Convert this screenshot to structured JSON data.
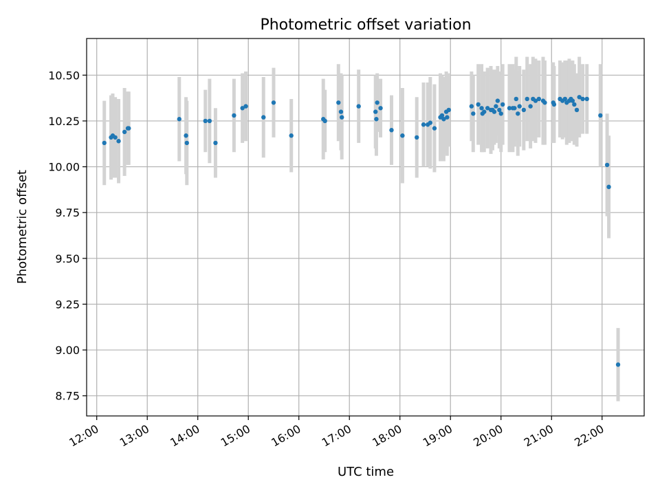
{
  "chart_data": {
    "type": "scatter",
    "title": "Photometric offset variation",
    "xlabel": "UTC time",
    "ylabel": "Photometric offset",
    "xlim": [
      "11:48",
      "22:50"
    ],
    "ylim": [
      8.64,
      10.7
    ],
    "grid": true,
    "x_ticks": [
      "12:00",
      "13:00",
      "14:00",
      "15:00",
      "16:00",
      "17:00",
      "18:00",
      "19:00",
      "20:00",
      "21:00",
      "22:00"
    ],
    "y_ticks": [
      "8.75",
      "9.00",
      "9.25",
      "9.50",
      "9.75",
      "10.00",
      "10.25",
      "10.50"
    ],
    "colors": {
      "point": "#1f77b4",
      "error_bar": "#d3d3d3",
      "grid": "#b0b0b0"
    },
    "series": [
      {
        "x": [
          "12:09",
          "12:17",
          "12:19",
          "12:22",
          "12:26",
          "12:33",
          "12:37",
          "12:38",
          "13:38",
          "13:46",
          "13:47",
          "14:09",
          "14:14",
          "14:21",
          "14:43",
          "14:53",
          "14:57",
          "15:18",
          "15:30",
          "15:51",
          "16:29",
          "16:31",
          "16:47",
          "16:50",
          "16:51",
          "17:11",
          "17:31",
          "17:32",
          "17:33",
          "17:37",
          "17:50",
          "18:03",
          "18:20",
          "18:28",
          "18:33",
          "18:36",
          "18:41",
          "18:48",
          "18:50",
          "18:52",
          "18:55",
          "18:56",
          "18:58",
          "19:25",
          "19:27",
          "19:33",
          "19:37",
          "19:38",
          "19:40",
          "19:44",
          "19:48",
          "19:50",
          "19:52",
          "19:54",
          "19:56",
          "19:58",
          "20:00",
          "20:02",
          "20:10",
          "20:14",
          "20:16",
          "20:18",
          "20:20",
          "20:22",
          "20:27",
          "20:31",
          "20:35",
          "20:38",
          "20:41",
          "20:45",
          "20:50",
          "20:52",
          "21:02",
          "21:03",
          "21:10",
          "21:13",
          "21:16",
          "21:18",
          "21:21",
          "21:23",
          "21:25",
          "21:27",
          "21:30",
          "21:33",
          "21:37",
          "21:42",
          "21:58",
          "22:06",
          "22:08",
          "22:19"
        ],
        "y": [
          10.13,
          10.16,
          10.17,
          10.16,
          10.14,
          10.19,
          10.21,
          10.21,
          10.26,
          10.17,
          10.13,
          10.25,
          10.25,
          10.13,
          10.28,
          10.32,
          10.33,
          10.27,
          10.35,
          10.17,
          10.26,
          10.25,
          10.35,
          10.3,
          10.27,
          10.33,
          10.3,
          10.26,
          10.35,
          10.32,
          10.2,
          10.17,
          10.16,
          10.23,
          10.23,
          10.24,
          10.21,
          10.27,
          10.28,
          10.26,
          10.3,
          10.27,
          10.31,
          10.33,
          10.29,
          10.34,
          10.32,
          10.29,
          10.3,
          10.32,
          10.31,
          10.31,
          10.3,
          10.33,
          10.36,
          10.31,
          10.29,
          10.34,
          10.32,
          10.32,
          10.32,
          10.37,
          10.29,
          10.33,
          10.31,
          10.37,
          10.33,
          10.37,
          10.36,
          10.37,
          10.36,
          10.35,
          10.35,
          10.34,
          10.37,
          10.36,
          10.37,
          10.35,
          10.36,
          10.37,
          10.36,
          10.34,
          10.31,
          10.38,
          10.37,
          10.37,
          10.28,
          10.01,
          9.89,
          8.92
        ],
        "err": [
          0.23,
          0.23,
          0.23,
          0.22,
          0.23,
          0.24,
          0.2,
          0.2,
          0.23,
          0.21,
          0.23,
          0.17,
          0.23,
          0.19,
          0.2,
          0.19,
          0.19,
          0.22,
          0.19,
          0.2,
          0.22,
          0.17,
          0.21,
          0.21,
          0.23,
          0.2,
          0.2,
          0.2,
          0.16,
          0.16,
          0.19,
          0.26,
          0.22,
          0.23,
          0.23,
          0.25,
          0.24,
          0.24,
          0.22,
          0.23,
          0.22,
          0.21,
          0.2,
          0.19,
          0.21,
          0.22,
          0.24,
          0.21,
          0.22,
          0.22,
          0.24,
          0.22,
          0.18,
          0.2,
          0.19,
          0.21,
          0.21,
          0.22,
          0.24,
          0.24,
          0.21,
          0.23,
          0.23,
          0.22,
          0.22,
          0.23,
          0.23,
          0.23,
          0.23,
          0.21,
          0.24,
          0.23,
          0.22,
          0.21,
          0.21,
          0.21,
          0.21,
          0.23,
          0.23,
          0.2,
          0.22,
          0.22,
          0.2,
          0.22,
          0.19,
          0.19,
          0.28,
          0.28,
          0.28,
          0.2
        ]
      }
    ]
  }
}
